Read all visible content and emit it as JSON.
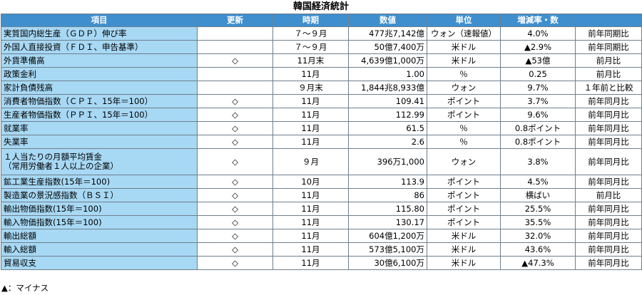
{
  "title": "韓国経済統計",
  "headers": {
    "item": "項目",
    "update": "更新",
    "period": "時期",
    "value": "数値",
    "unit": "単位",
    "change": "増減率・数",
    "basis": ""
  },
  "rows": [
    {
      "item": "実質国内総生産（ＧＤＰ）伸び率",
      "update": "",
      "period": "７～９月",
      "value": "477兆7,142億",
      "unit": "ウォン（速報値）",
      "change": "4.0%",
      "basis": "前年同期比"
    },
    {
      "item": "外国人直接投資（ＦＤＩ、申告基準）",
      "update": "",
      "period": "７～９月",
      "value": "50億7,400万",
      "unit": "米ドル",
      "change": "▲2.9%",
      "basis": "前年同期比"
    },
    {
      "item": "外貨準備高",
      "update": "◇",
      "period": "11月末",
      "value": "4,639億1,000万",
      "unit": "米ドル",
      "change": "▲53億",
      "basis": "前月比"
    },
    {
      "item": "政策金利",
      "update": "",
      "period": "11月",
      "value": "1.00",
      "unit": "％",
      "change": "0.25",
      "basis": "前月比"
    },
    {
      "item": "家計負債残高",
      "update": "",
      "period": "９月末",
      "value": "1,844兆8,933億",
      "unit": "ウォン",
      "change": "9.7%",
      "basis": "１年前と比較"
    },
    {
      "item": "消費者物価指数（ＣＰＩ、15年＝100）",
      "update": "◇",
      "period": "11月",
      "value": "109.41",
      "unit": "ポイント",
      "change": "3.7%",
      "basis": "前年同月比"
    },
    {
      "item": "生産者物価指数（ＰＰＩ、15年＝100）",
      "update": "◇",
      "period": "11月",
      "value": "112.99",
      "unit": "ポイント",
      "change": "9.6%",
      "basis": "前年同月比"
    },
    {
      "item": "就業率",
      "update": "◇",
      "period": "11月",
      "value": "61.5",
      "unit": "％",
      "change": "0.8ポイント",
      "basis": "前年同月比"
    },
    {
      "item": "失業率",
      "update": "◇",
      "period": "11月",
      "value": "2.6",
      "unit": "％",
      "change": "0.8ポイント",
      "basis": "前年同月比"
    },
    {
      "item": "１人当たりの月額平均賃金\n（常用労働者１人以上の企業）",
      "update": "◇",
      "period": "９月",
      "value": "396万1,000",
      "unit": "ウォン",
      "change": "3.8%",
      "basis": "前年同月比"
    },
    {
      "item": "鉱工業生産指数(15年＝100)",
      "update": "◇",
      "period": "10月",
      "value": "113.9",
      "unit": "ポイント",
      "change": "4.5%",
      "basis": "前年同月比"
    },
    {
      "item": "製造業の景況感指数（ＢＳＩ）",
      "update": "◇",
      "period": "11月",
      "value": "86",
      "unit": "ポイント",
      "change": "横ばい",
      "basis": "前月比"
    },
    {
      "item": "輸出物価指数(15年＝100)",
      "update": "◇",
      "period": "11月",
      "value": "115.80",
      "unit": "ポイント",
      "change": "25.5%",
      "basis": "前年同月比"
    },
    {
      "item": "輸入物価指数(15年＝100)",
      "update": "◇",
      "period": "11月",
      "value": "130.17",
      "unit": "ポイント",
      "change": "35.5%",
      "basis": "前年同月比"
    },
    {
      "item": "輸出総額",
      "update": "◇",
      "period": "11月",
      "value": "604億1,200万",
      "unit": "米ドル",
      "change": "32.0%",
      "basis": "前年同月比"
    },
    {
      "item": "輸入総額",
      "update": "◇",
      "period": "11月",
      "value": "573億5,100万",
      "unit": "米ドル",
      "change": "43.6%",
      "basis": "前年同月比"
    },
    {
      "item": "貿易収支",
      "update": "◇",
      "period": "11月",
      "value": "30億6,100万",
      "unit": "米ドル",
      "change": "▲47.3%",
      "basis": "前年同月比"
    }
  ],
  "footnote": "▲：マイナス",
  "colors": {
    "header_bg": "#3f8fce",
    "item_bg": "#a7d8f4",
    "border": "#6f7f8c"
  }
}
